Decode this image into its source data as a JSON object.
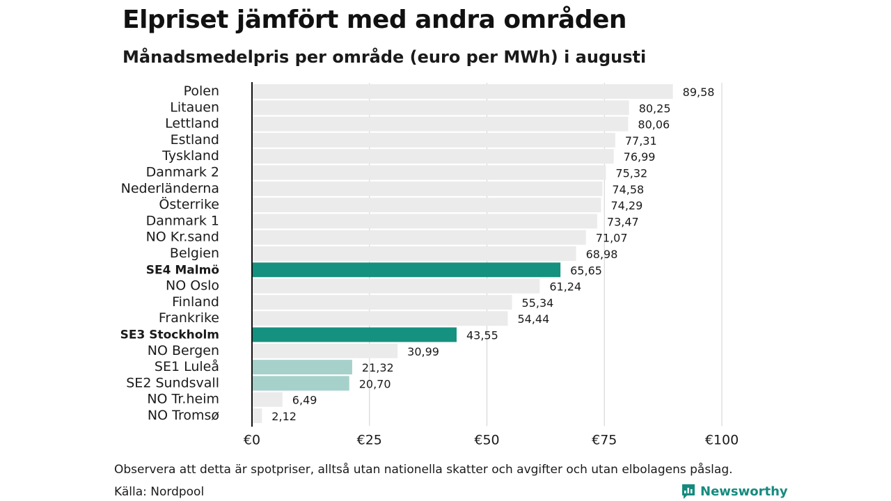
{
  "header": {
    "title": "Elpriset jämfört med andra områden",
    "subtitle": "Månadsmedelpris per område (euro per MWh) i augusti"
  },
  "footer": {
    "note": "Observera att detta är spotpriser, alltså utan nationella skatter och avgifter och utan elbolagens påslag.",
    "source": "Källa: Nordpool",
    "brand": "Newsworthy"
  },
  "colors": {
    "bar_default": "#ebebeb",
    "bar_highlight": "#14917f",
    "bar_light": "#a5d1ca",
    "grid": "#d0d0d0",
    "axis": "#111111",
    "brand": "#158b7e"
  },
  "chart_data": {
    "type": "bar",
    "orientation": "horizontal",
    "categories": [
      "Polen",
      "Litauen",
      "Lettland",
      "Estland",
      "Tyskland",
      "Danmark  2",
      "Nederländerna",
      "Österrike",
      "Danmark  1",
      "NO Kr.sand",
      "Belgien",
      "SE4 Malmö",
      "NO Oslo",
      "Finland",
      "Frankrike",
      "SE3 Stockholm",
      "NO Bergen",
      "SE1  Luleå",
      "SE2  Sundsvall",
      "NO Tr.heim",
      "NO Tromsø"
    ],
    "values": [
      89.58,
      80.25,
      80.06,
      77.31,
      76.99,
      75.32,
      74.58,
      74.29,
      73.47,
      71.07,
      68.98,
      65.65,
      61.24,
      55.34,
      54.44,
      43.55,
      30.99,
      21.32,
      20.7,
      6.49,
      2.12
    ],
    "value_labels": [
      "89,58",
      "80,25",
      "80,06",
      "77,31",
      "76,99",
      "75,32",
      "74,58",
      "74,29",
      "73,47",
      "71,07",
      "68,98",
      "65,65",
      "61,24",
      "55,34",
      "54,44",
      "43,55",
      "30,99",
      "21,32",
      "20,70",
      "6,49",
      "2,12"
    ],
    "highlight": [
      "default",
      "default",
      "default",
      "default",
      "default",
      "default",
      "default",
      "default",
      "default",
      "default",
      "default",
      "strong",
      "default",
      "default",
      "default",
      "strong",
      "default",
      "light",
      "light",
      "default",
      "default"
    ],
    "xlim": [
      0,
      100
    ],
    "xticks": [
      0,
      25,
      50,
      75,
      100
    ],
    "xtick_labels": [
      "€0",
      "€25",
      "€50",
      "€75",
      "€100"
    ],
    "grid": true,
    "xlabel": "",
    "ylabel": ""
  }
}
